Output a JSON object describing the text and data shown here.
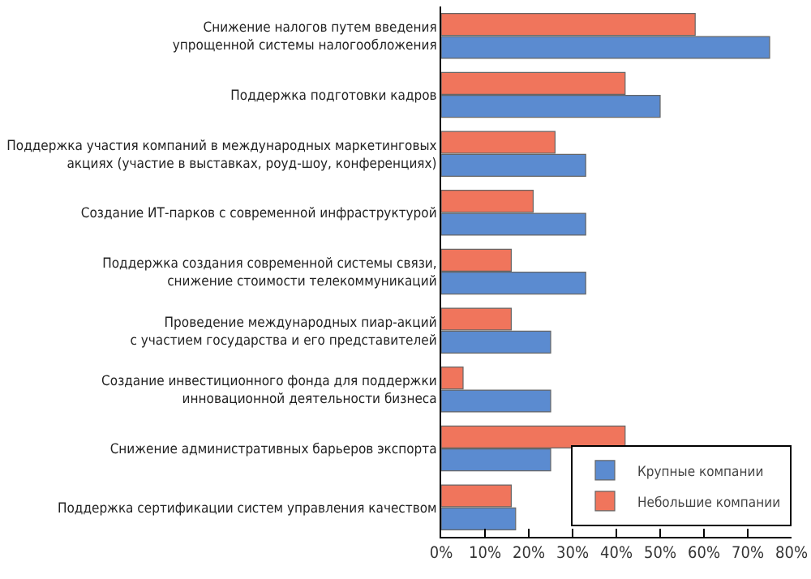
{
  "chart_data": {
    "type": "bar",
    "orientation": "horizontal",
    "categories": [
      "Снижение налогов путем введения\nупрощенной системы налогообложения",
      "Поддержка подготовки кадров",
      "Поддержка участия компаний в международных маркетинговых\nакциях (участие в выставках, роуд-шоу, конференциях)",
      "Создание ИТ-парков с современной инфраструктурой",
      "Поддержка создания современной системы связи,\nснижение стоимости телекоммуникаций",
      "Проведение международных пиар-акций\nс участием государства и его представителей",
      "Создание инвестиционного фонда для поддержки\nинновационной деятельности бизнеса",
      "Снижение административных барьеров экспорта",
      "Поддержка сертификации систем управления качеством"
    ],
    "series": [
      {
        "name": "Крупные компании",
        "color": "#5b8bd0",
        "values": [
          75,
          50,
          33,
          33,
          33,
          25,
          25,
          25,
          17
        ]
      },
      {
        "name": "Небольшие компании",
        "color": "#f0755c",
        "values": [
          58,
          42,
          26,
          21,
          16,
          16,
          5,
          42,
          16
        ]
      }
    ],
    "xlim": [
      0,
      80
    ],
    "xticks": [
      {
        "value": 0,
        "label": "0%"
      },
      {
        "value": 10,
        "label": "10%"
      },
      {
        "value": 20,
        "label": "20%"
      },
      {
        "value": 30,
        "label": "30%"
      },
      {
        "value": 40,
        "label": "40%"
      },
      {
        "value": 50,
        "label": "50%"
      },
      {
        "value": 60,
        "label": "60%"
      },
      {
        "value": 70,
        "label": "70%"
      },
      {
        "value": 80,
        "label": "80%"
      }
    ],
    "grid": false,
    "legend": "bottom right"
  }
}
